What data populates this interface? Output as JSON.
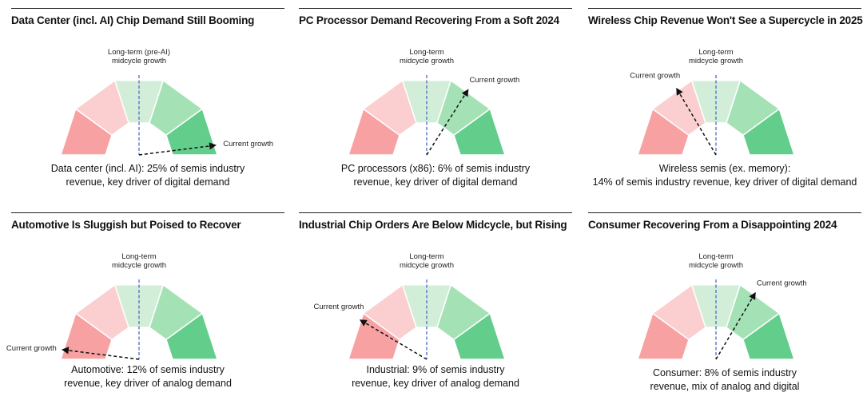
{
  "chart_data": [
    {
      "type": "gauge",
      "title": "Data Center (incl. AI) Chip Demand Still Booming",
      "reference_label_lines": [
        "Long-term (pre-AI)",
        "midcycle growth"
      ],
      "current_label": "Current growth",
      "current_position": 0.96,
      "caption_lines": [
        "Data center (incl. AI): 25% of semis industry",
        "revenue, key driver of digital demand"
      ]
    },
    {
      "type": "gauge",
      "title": "PC Processor Demand Recovering From a Soft 2024",
      "reference_label_lines": [
        "Long-term",
        "midcycle growth"
      ],
      "current_label": "Current growth",
      "current_position": 0.68,
      "caption_lines": [
        "PC processors (x86): 6% of semis industry",
        "revenue, key driver of digital demand"
      ]
    },
    {
      "type": "gauge",
      "title": "Wireless Chip Revenue Won't See a Supercycle in 2025",
      "reference_label_lines": [
        "Long-term",
        "midcycle growth"
      ],
      "current_label": "Current growth",
      "current_position": 0.33,
      "caption_lines": [
        "Wireless semis (ex. memory):",
        "14% of semis industry revenue, key driver of digital demand"
      ]
    },
    {
      "type": "gauge",
      "title": "Automotive Is Sluggish but Poised to Recover",
      "reference_label_lines": [
        "Long-term",
        "midcycle growth"
      ],
      "current_label": "Current growth",
      "current_position": 0.04,
      "caption_lines": [
        "Automotive: 12% of semis industry",
        "revenue, key driver of analog demand"
      ]
    },
    {
      "type": "gauge",
      "title": "Industrial Chip Orders Are Below Midcycle, but Rising",
      "reference_label_lines": [
        "Long-term",
        "midcycle growth"
      ],
      "current_label": "Current growth",
      "current_position": 0.17,
      "caption_lines": [
        "Industrial: 9% of semis industry",
        "revenue, key driver of analog demand"
      ]
    },
    {
      "type": "gauge",
      "title": "Consumer Recovering From a Disappointing 2024",
      "reference_label_lines": [
        "Long-term",
        "midcycle growth"
      ],
      "current_label": "Current growth",
      "current_position": 0.67,
      "caption_lines": [
        "Consumer: 8% of semis industry",
        "revenue, mix of analog and digital"
      ]
    }
  ],
  "colors": {
    "segments": [
      "#f7a1a3",
      "#fbcfd0",
      "#d3eed8",
      "#a4e2b6",
      "#63cd8b"
    ],
    "reference_line": "#4a6bc7",
    "arrow": "#111111"
  }
}
